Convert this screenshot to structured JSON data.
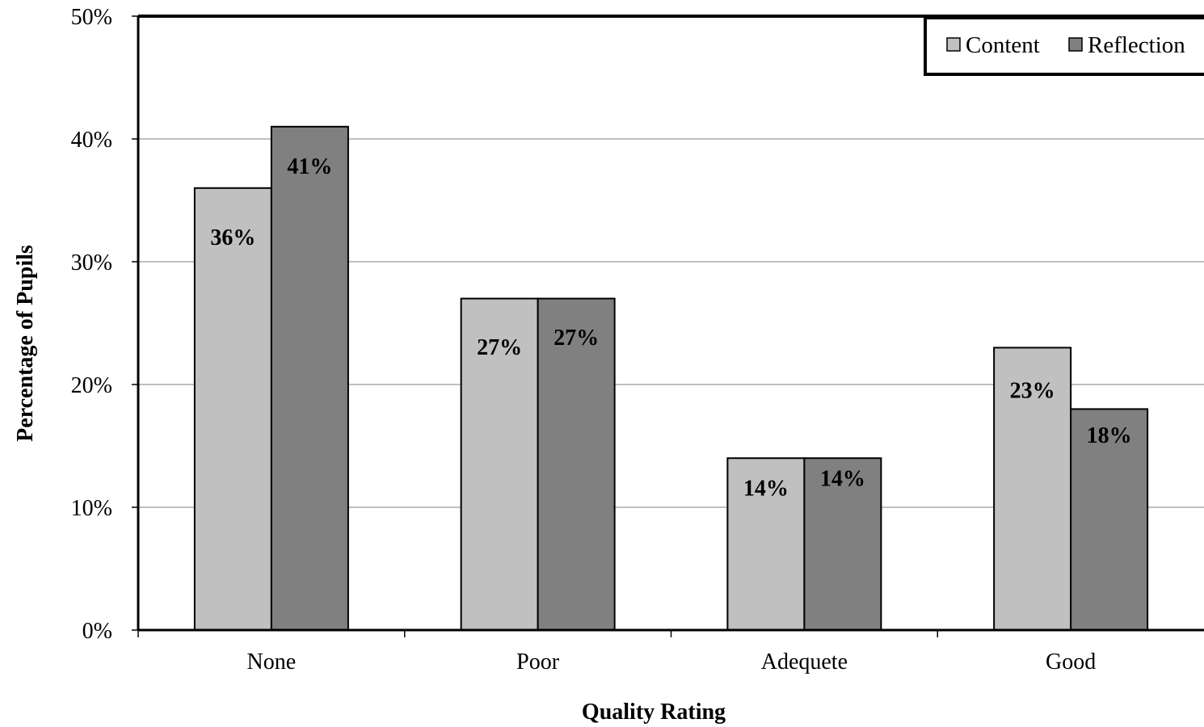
{
  "chart_data": {
    "type": "bar",
    "categories": [
      "None",
      "Poor",
      "Adequete",
      "Good"
    ],
    "series": [
      {
        "name": "Content",
        "values": [
          36,
          27,
          14,
          23
        ],
        "labels": [
          "36%",
          "27%",
          "14%",
          "23%"
        ]
      },
      {
        "name": "Reflection",
        "values": [
          41,
          27,
          14,
          18
        ],
        "labels": [
          "41%",
          "27%",
          "14%",
          "18%"
        ]
      }
    ],
    "xlabel": "Quality Rating",
    "ylabel": "Percentage of Pupils",
    "ylim": [
      0,
      50
    ],
    "yticks": [
      0,
      10,
      20,
      30,
      40,
      50
    ],
    "ytick_labels": [
      "0%",
      "10%",
      "20%",
      "30%",
      "40%",
      "50%"
    ],
    "grid": true,
    "legend_position": "top-right",
    "colors": {
      "Content": "#c0c0c0",
      "Reflection": "#808080",
      "grid": "#9a9a9a",
      "axis": "#000000"
    }
  }
}
